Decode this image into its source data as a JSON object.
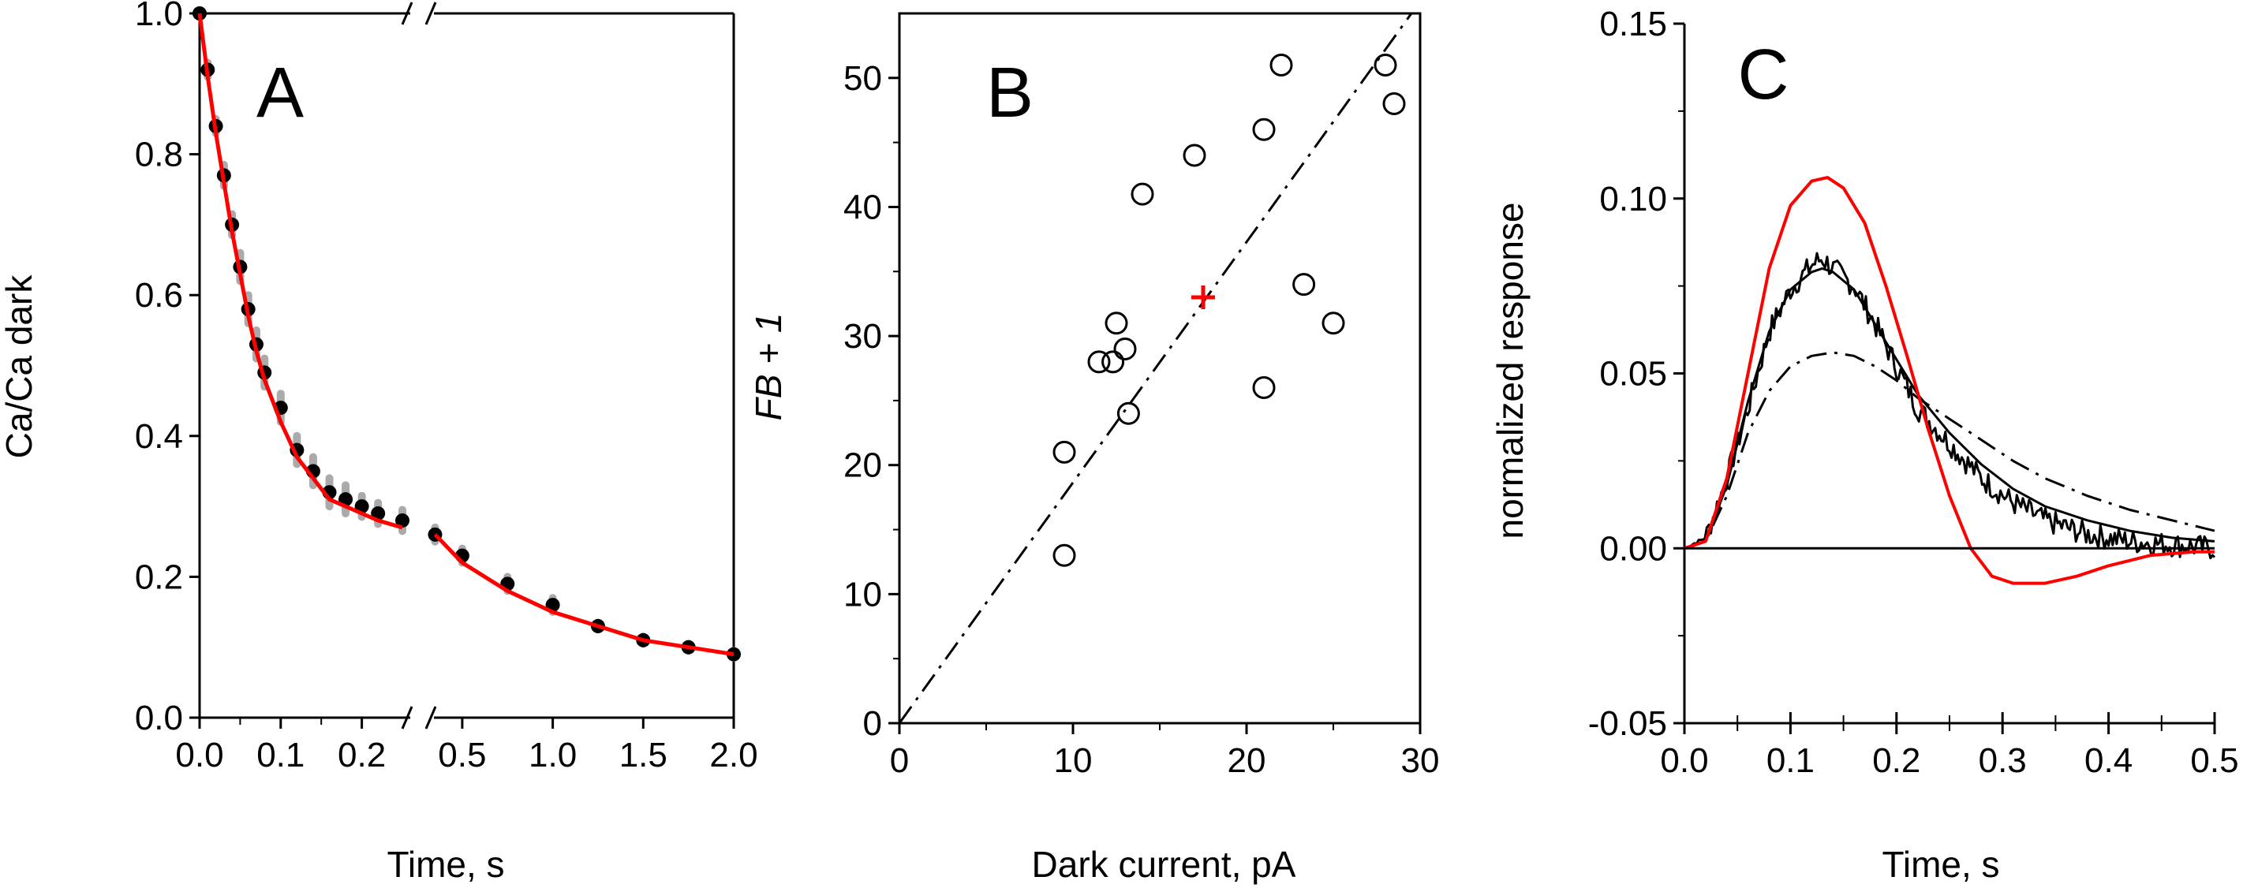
{
  "chart_data": [
    {
      "panel": "A",
      "type": "scatter",
      "ylabel": "Ca/Ca dark",
      "xlabel": "Time, s",
      "ylim": [
        0.0,
        1.0
      ],
      "yticks": [
        "0.0",
        "0.2",
        "0.4",
        "0.6",
        "0.8",
        "1.0"
      ],
      "segments": [
        {
          "xlim": [
            0.0,
            0.25
          ],
          "xticks": [
            "0.0",
            "0.1",
            "0.2"
          ]
        },
        {
          "xlim": [
            0.3,
            2.0
          ],
          "xticks": [
            "0.5",
            "1.0",
            "1.5",
            "2.0"
          ]
        }
      ],
      "series": [
        {
          "role": "data",
          "color": "#000000",
          "error_color": "#aaaaaa",
          "x": [
            0.0,
            0.01,
            0.02,
            0.03,
            0.04,
            0.05,
            0.06,
            0.07,
            0.08,
            0.1,
            0.12,
            0.14,
            0.16,
            0.18,
            0.2,
            0.22,
            0.25,
            0.35,
            0.5,
            0.75,
            1.0,
            1.25,
            1.5,
            1.75,
            2.0
          ],
          "y": [
            1.0,
            0.92,
            0.84,
            0.77,
            0.7,
            0.64,
            0.58,
            0.53,
            0.49,
            0.44,
            0.38,
            0.35,
            0.32,
            0.31,
            0.3,
            0.29,
            0.28,
            0.26,
            0.23,
            0.19,
            0.16,
            0.13,
            0.11,
            0.1,
            0.09
          ],
          "err": [
            0.0,
            0.01,
            0.01,
            0.015,
            0.015,
            0.02,
            0.02,
            0.02,
            0.02,
            0.02,
            0.02,
            0.02,
            0.02,
            0.02,
            0.015,
            0.015,
            0.015,
            0.01,
            0.01,
            0.01,
            0.01,
            0.005,
            0.005,
            0.005,
            0.005
          ]
        },
        {
          "role": "fit",
          "color": "#ff0000",
          "x": [
            0.0,
            0.01,
            0.02,
            0.03,
            0.04,
            0.05,
            0.06,
            0.07,
            0.08,
            0.1,
            0.12,
            0.14,
            0.16,
            0.18,
            0.2,
            0.22,
            0.25,
            0.35,
            0.5,
            0.75,
            1.0,
            1.25,
            1.5,
            1.75,
            2.0
          ],
          "y": [
            1.0,
            0.91,
            0.83,
            0.76,
            0.69,
            0.63,
            0.57,
            0.52,
            0.48,
            0.42,
            0.37,
            0.34,
            0.31,
            0.3,
            0.29,
            0.28,
            0.27,
            0.26,
            0.22,
            0.18,
            0.15,
            0.13,
            0.11,
            0.1,
            0.09
          ]
        }
      ]
    },
    {
      "panel": "B",
      "type": "scatter",
      "xlabel": "Dark current, pA",
      "ylabel": "FB + 1",
      "xlim": [
        0,
        30
      ],
      "ylim": [
        0,
        55
      ],
      "xticks": [
        0,
        10,
        20,
        30
      ],
      "yticks": [
        0,
        10,
        20,
        30,
        40,
        50
      ],
      "points": {
        "x": [
          9.5,
          9.5,
          11.5,
          12.3,
          12.5,
          13.0,
          13.2,
          14.0,
          17.0,
          21.0,
          21.0,
          22.0,
          23.3,
          25.0,
          28.0,
          28.5
        ],
        "y": [
          21,
          13,
          28,
          28,
          31,
          29,
          24,
          41,
          44,
          46,
          26,
          51,
          34,
          31,
          51,
          48
        ]
      },
      "mean_point": {
        "x": 17.5,
        "y": 33,
        "color": "#ff0000"
      },
      "regression_line": {
        "x": [
          0,
          29.5
        ],
        "y": [
          0,
          55
        ],
        "style": "dash-dot"
      }
    },
    {
      "panel": "C",
      "type": "line",
      "xlabel": "Time, s",
      "ylabel": "normalized  response",
      "xlim": [
        0.0,
        0.5
      ],
      "ylim": [
        -0.05,
        0.15
      ],
      "xticks": [
        "0.0",
        "0.1",
        "0.2",
        "0.3",
        "0.4",
        "0.5"
      ],
      "yticks": [
        "-0.05",
        "0.00",
        "0.05",
        "0.10",
        "0.15"
      ],
      "series": [
        {
          "role": "measured",
          "style": "noisy",
          "color": "#000000",
          "x": [
            0.0,
            0.02,
            0.04,
            0.06,
            0.08,
            0.1,
            0.12,
            0.13,
            0.14,
            0.16,
            0.18,
            0.2,
            0.22,
            0.25,
            0.28,
            0.31,
            0.34,
            0.38,
            0.42,
            0.46,
            0.5
          ],
          "y": [
            0.0,
            0.003,
            0.02,
            0.04,
            0.062,
            0.074,
            0.081,
            0.083,
            0.08,
            0.075,
            0.064,
            0.052,
            0.04,
            0.03,
            0.02,
            0.013,
            0.008,
            0.004,
            0.002,
            0.001,
            0.0
          ]
        },
        {
          "role": "model",
          "style": "solid",
          "color": "#000000",
          "x": [
            0.0,
            0.02,
            0.04,
            0.06,
            0.08,
            0.1,
            0.12,
            0.13,
            0.14,
            0.16,
            0.18,
            0.2,
            0.22,
            0.25,
            0.28,
            0.31,
            0.34,
            0.38,
            0.42,
            0.46,
            0.5
          ],
          "y": [
            0.0,
            0.002,
            0.018,
            0.042,
            0.062,
            0.074,
            0.079,
            0.08,
            0.079,
            0.074,
            0.064,
            0.054,
            0.044,
            0.033,
            0.024,
            0.017,
            0.012,
            0.008,
            0.005,
            0.003,
            0.002
          ]
        },
        {
          "role": "model",
          "style": "dash-dot",
          "color": "#000000",
          "x": [
            0.0,
            0.02,
            0.04,
            0.06,
            0.08,
            0.1,
            0.12,
            0.14,
            0.16,
            0.18,
            0.2,
            0.22,
            0.25,
            0.28,
            0.31,
            0.34,
            0.38,
            0.42,
            0.46,
            0.5
          ],
          "y": [
            0.0,
            0.002,
            0.015,
            0.033,
            0.045,
            0.052,
            0.055,
            0.056,
            0.055,
            0.052,
            0.048,
            0.043,
            0.037,
            0.031,
            0.025,
            0.02,
            0.015,
            0.011,
            0.008,
            0.005
          ]
        },
        {
          "role": "model",
          "style": "solid",
          "color": "#ff0000",
          "x": [
            0.0,
            0.02,
            0.04,
            0.06,
            0.08,
            0.1,
            0.12,
            0.135,
            0.15,
            0.17,
            0.19,
            0.21,
            0.23,
            0.25,
            0.27,
            0.29,
            0.31,
            0.34,
            0.37,
            0.4,
            0.44,
            0.48,
            0.5
          ],
          "y": [
            0.0,
            0.002,
            0.02,
            0.05,
            0.08,
            0.098,
            0.105,
            0.106,
            0.103,
            0.093,
            0.075,
            0.055,
            0.034,
            0.015,
            0.0,
            -0.008,
            -0.01,
            -0.01,
            -0.008,
            -0.005,
            -0.002,
            -0.001,
            -0.001
          ]
        },
        {
          "role": "baseline",
          "style": "solid",
          "color": "#000000",
          "x": [
            0.0,
            0.5
          ],
          "y": [
            0.0,
            0.0
          ]
        }
      ]
    }
  ],
  "panel_letters": {
    "a": "A",
    "b": "B",
    "c": "C"
  }
}
